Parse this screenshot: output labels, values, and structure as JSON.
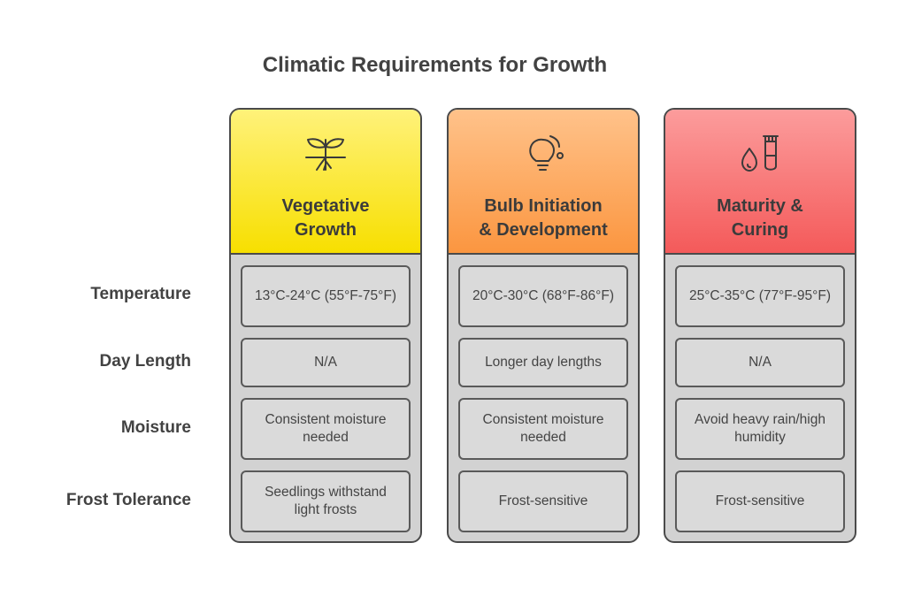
{
  "title": "Climatic Requirements for Growth",
  "row_labels": [
    "Temperature",
    "Day Length",
    "Moisture",
    "Frost Tolerance"
  ],
  "columns": [
    {
      "title_line1": "Vegetative",
      "title_line2": "Growth",
      "icon": "sprout-icon",
      "header_color_top": "#fff27a",
      "header_color_bottom": "#f7df00",
      "cells": [
        "13°C-24°C (55°F-75°F)",
        "N/A",
        "Consistent moisture needed",
        "Seedlings withstand light frosts"
      ]
    },
    {
      "title_line1": "Bulb Initiation",
      "title_line2": "& Development",
      "icon": "lightbulb-icon",
      "header_color_top": "#ffc28a",
      "header_color_bottom": "#fb9640",
      "cells": [
        "20°C-30°C (68°F-86°F)",
        "Longer day lengths",
        "Consistent moisture needed",
        "Frost-sensitive"
      ]
    },
    {
      "title_line1": "Maturity &",
      "title_line2": "Curing",
      "icon": "drop-test-tube-icon",
      "header_color_top": "#fc9c9c",
      "header_color_bottom": "#f45a5a",
      "cells": [
        "25°C-35°C (77°F-95°F)",
        "N/A",
        "Avoid heavy rain/high humidity",
        "Frost-sensitive"
      ]
    }
  ]
}
